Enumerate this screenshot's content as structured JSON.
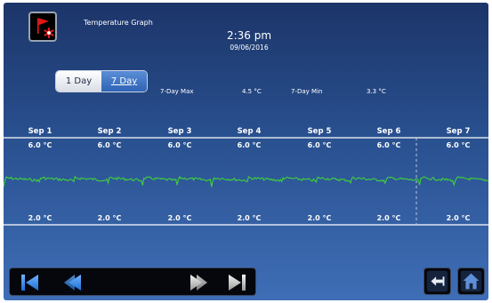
{
  "header": {
    "title": "Temperature Graph",
    "time": "2:36 pm",
    "date": "09/06/2016",
    "alarm_icon": "alarm-flag-icon"
  },
  "range_toggle": {
    "options": [
      {
        "label": "1 Day",
        "active": false
      },
      {
        "label": "7 Day",
        "active": true
      }
    ]
  },
  "stats": {
    "max_label": "7-Day Max",
    "max_value": "4.5 °C",
    "min_label": "7-Day Min",
    "min_value": "3.3 °C"
  },
  "graph": {
    "days": [
      "Sep 1",
      "Sep 2",
      "Sep 3",
      "Sep 4",
      "Sep 5",
      "Sep 6",
      "Sep 7"
    ],
    "high_limits": [
      "6.0 °C",
      "6.0 °C",
      "6.0 °C",
      "6.0 °C",
      "6.0 °C",
      "6.0 °C",
      "6.0 °C"
    ],
    "low_limits": [
      "2.0 °C",
      "2.0 °C",
      "2.0 °C",
      "2.0 °C",
      "2.0 °C",
      "2.0 °C",
      "2.0 °C"
    ],
    "upper_limit_value": 6.0,
    "lower_limit_value": 2.0,
    "line_color": "#3fd13a",
    "limit_line_color": "#ffffff"
  },
  "nav": {
    "first_icon": "skip-to-first-icon",
    "prev_icon": "page-back-icon",
    "next_icon": "page-forward-icon",
    "last_icon": "skip-to-last-icon",
    "back_icon": "back-arrow-icon",
    "home_icon": "home-icon"
  }
}
